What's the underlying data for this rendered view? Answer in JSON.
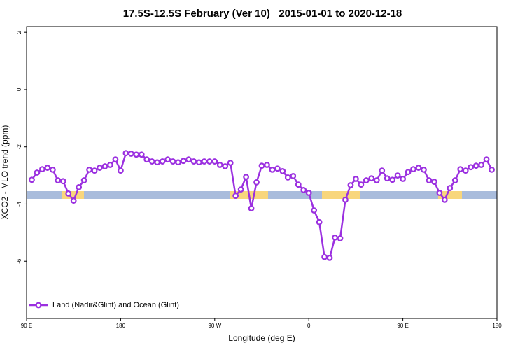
{
  "chart_data": {
    "type": "line",
    "title": "17.5S-12.5S February (Ver 10)   2015-01-01 to 2020-12-18",
    "xlabel": "Longitude (deg E)",
    "ylabel": "XCO2 - MLO trend (ppm)",
    "xlim": [
      90,
      540
    ],
    "xticks": [
      {
        "value": 90,
        "label": "90 E"
      },
      {
        "value": 180,
        "label": "180"
      },
      {
        "value": 270,
        "label": "90 W"
      },
      {
        "value": 360,
        "label": "0"
      },
      {
        "value": 450,
        "label": "90 E"
      },
      {
        "value": 540,
        "label": "180"
      }
    ],
    "ylim": [
      -8,
      2.2
    ],
    "yticks": [
      2,
      0,
      -2,
      -4,
      -6
    ],
    "legend": "bottom-left",
    "x": [
      95,
      100,
      105,
      110,
      115,
      120,
      125,
      130,
      135,
      140,
      145,
      150,
      155,
      160,
      165,
      170,
      175,
      180,
      185,
      190,
      195,
      200,
      205,
      210,
      215,
      220,
      225,
      230,
      235,
      240,
      245,
      250,
      255,
      260,
      265,
      270,
      275,
      280,
      285,
      290,
      295,
      300,
      305,
      310,
      315,
      320,
      325,
      330,
      335,
      340,
      345,
      350,
      355,
      360,
      365,
      370,
      375,
      380,
      385,
      390,
      395,
      400,
      405,
      410,
      415,
      420,
      425,
      430,
      435,
      440,
      445,
      450,
      455,
      460,
      465,
      470,
      475,
      480,
      485,
      490,
      495,
      500,
      505,
      510,
      515,
      520,
      525,
      530,
      535
    ],
    "series": [
      {
        "name": "Land (Nadir&Glint) and Ocean (Glint)",
        "color": "#9b30e0",
        "values": [
          -3.15,
          -2.9,
          -2.78,
          -2.73,
          -2.8,
          -3.17,
          -3.2,
          -3.63,
          -3.88,
          -3.41,
          -3.17,
          -2.8,
          -2.83,
          -2.73,
          -2.68,
          -2.63,
          -2.44,
          -2.83,
          -2.22,
          -2.24,
          -2.27,
          -2.27,
          -2.44,
          -2.51,
          -2.54,
          -2.51,
          -2.44,
          -2.51,
          -2.54,
          -2.49,
          -2.44,
          -2.51,
          -2.54,
          -2.51,
          -2.51,
          -2.51,
          -2.63,
          -2.68,
          -2.56,
          -3.71,
          -3.49,
          -3.05,
          -4.15,
          -3.24,
          -2.66,
          -2.63,
          -2.8,
          -2.76,
          -2.85,
          -3.07,
          -3.02,
          -3.32,
          -3.51,
          -3.61,
          -4.22,
          -4.63,
          -5.85,
          -5.88,
          -5.17,
          -5.2,
          -3.85,
          -3.34,
          -3.12,
          -3.32,
          -3.17,
          -3.1,
          -3.17,
          -2.83,
          -3.1,
          -3.15,
          -3.0,
          -3.12,
          -2.88,
          -2.78,
          -2.73,
          -2.8,
          -3.17,
          -3.22,
          -3.61,
          -3.85,
          -3.44,
          -3.17,
          -2.78,
          -2.83,
          -2.71,
          -2.66,
          -2.63,
          -2.44,
          -2.8
        ]
      }
    ]
  }
}
